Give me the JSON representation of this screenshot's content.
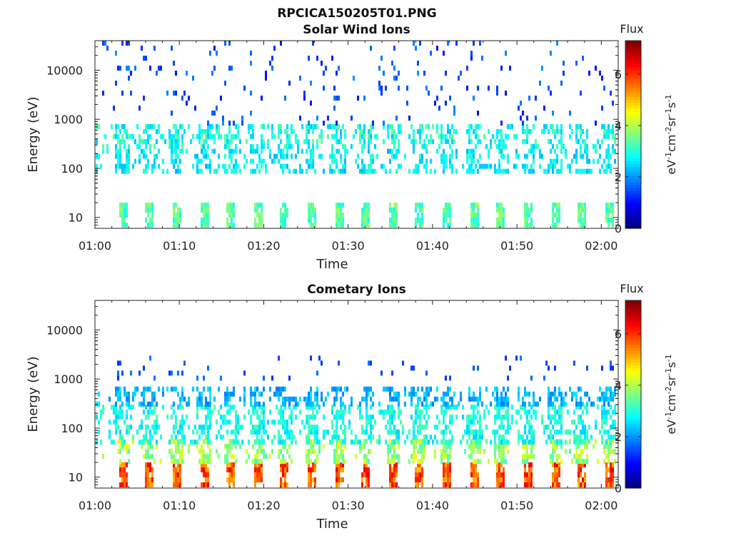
{
  "figure": {
    "title": "RPCICA150205T01.PNG"
  },
  "colors": {
    "colormap": "jet",
    "axis": "#222222",
    "background": "#ffffff"
  },
  "chart_data": [
    {
      "type": "heatmap",
      "title": "Solar Wind Ions",
      "xlabel": "Time",
      "ylabel": "Energy (eV)",
      "x_ticks": [
        "01:00",
        "01:10",
        "01:20",
        "01:30",
        "01:40",
        "01:50",
        "02:00"
      ],
      "xlim_minutes": [
        0,
        62
      ],
      "y_scale": "log",
      "y_ticks": [
        {
          "value": 10,
          "label": "10"
        },
        {
          "value": 100,
          "label": "100"
        },
        {
          "value": 1000,
          "label": "1000"
        },
        {
          "value": 10000,
          "label": "10000"
        }
      ],
      "ylim": [
        6,
        40000
      ],
      "colorbar": {
        "title": "Flux",
        "label": "eV-1cm-2sr-1s-1",
        "range": [
          0,
          7.3
        ],
        "ticks": [
          "0",
          "2",
          "4",
          "6"
        ]
      },
      "sweep_minutes": [
        3.2,
        6.4,
        9.6,
        12.8,
        16.0,
        19.2,
        22.4,
        25.6,
        28.8,
        32.0,
        35.2,
        38.4,
        41.6,
        44.8,
        48.0,
        51.2,
        54.4,
        57.6,
        60.8
      ],
      "bands": [
        {
          "energy_range": [
            6,
            20
          ],
          "flux_range": [
            2.8,
            3.9
          ],
          "description": "low-energy vertical streaks at each sweep"
        },
        {
          "energy_range": [
            90,
            250
          ],
          "flux_range": [
            2.2,
            3.1
          ],
          "description": "dense band near 100-200 eV"
        },
        {
          "energy_range": [
            250,
            800
          ],
          "flux_range": [
            2.3,
            3.5
          ],
          "description": "streaks at sweep times"
        },
        {
          "energy_range": [
            800,
            40000
          ],
          "flux_range": [
            1.0,
            2.0
          ],
          "description": "sparse scattered counts"
        }
      ]
    },
    {
      "type": "heatmap",
      "title": "Cometary Ions",
      "xlabel": "Time",
      "ylabel": "Energy (eV)",
      "x_ticks": [
        "01:00",
        "01:10",
        "01:20",
        "01:30",
        "01:40",
        "01:50",
        "02:00"
      ],
      "xlim_minutes": [
        0,
        62
      ],
      "y_scale": "log",
      "y_ticks": [
        {
          "value": 10,
          "label": "10"
        },
        {
          "value": 100,
          "label": "100"
        },
        {
          "value": 1000,
          "label": "1000"
        },
        {
          "value": 10000,
          "label": "10000"
        }
      ],
      "ylim": [
        6,
        40000
      ],
      "colorbar": {
        "title": "Flux",
        "label": "eV-1cm-2sr-1s-1",
        "range": [
          0,
          7.3
        ],
        "ticks": [
          "0",
          "2",
          "4",
          "6"
        ]
      },
      "sweep_minutes": [
        3.2,
        6.4,
        9.6,
        12.8,
        16.0,
        19.2,
        22.4,
        25.6,
        28.8,
        32.0,
        35.2,
        38.4,
        41.6,
        44.8,
        48.0,
        51.2,
        54.4,
        57.6,
        60.8
      ],
      "bands": [
        {
          "energy_range": [
            6,
            20
          ],
          "flux_range": [
            5.0,
            6.6
          ],
          "description": "intense orange/red bursts at each sweep"
        },
        {
          "energy_range": [
            20,
            60
          ],
          "flux_range": [
            3.2,
            4.5
          ],
          "description": "green-yellow tails above bursts"
        },
        {
          "energy_range": [
            50,
            300
          ],
          "flux_range": [
            2.4,
            3.4
          ],
          "description": "cyan cloud 50-300 eV"
        },
        {
          "energy_range": [
            300,
            700
          ],
          "flux_range": [
            1.8,
            2.6
          ],
          "description": "sparse upper streaks"
        },
        {
          "energy_range": [
            1000,
            3000
          ],
          "flux_range": [
            1.2,
            1.8
          ],
          "description": "rare isolated high-energy counts"
        }
      ]
    }
  ]
}
